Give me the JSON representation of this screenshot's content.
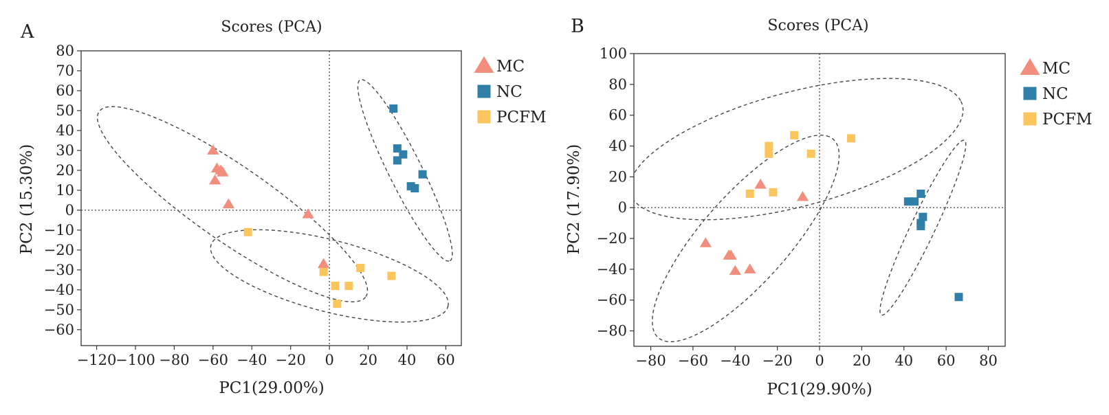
{
  "figure": {
    "colors": {
      "MC": "#f28e7e",
      "NC": "#2f7fa8",
      "PCFM": "#fbc55e"
    },
    "icons": {
      "MC": "triangle-marker-icon",
      "NC": "square-marker-icon",
      "PCFM": "square-marker-icon"
    }
  },
  "chart_data": [
    {
      "panel_label": "A",
      "type": "scatter",
      "title": "Scores (PCA)",
      "xlabel": "PC1(29.00%)",
      "ylabel": "PC2 (15.30%)",
      "xlim": [
        -128,
        68
      ],
      "ylim": [
        -68,
        80
      ],
      "xticks": [
        -120,
        -100,
        -80,
        -60,
        -40,
        -20,
        0,
        20,
        40,
        60
      ],
      "yticks": [
        80,
        70,
        60,
        50,
        40,
        30,
        20,
        10,
        0,
        -10,
        -20,
        -30,
        -40,
        -50,
        -60
      ],
      "xtick_labels": [
        "−120",
        "−100",
        "−80",
        "−60",
        "−40",
        "−20",
        "0",
        "20",
        "40",
        "60"
      ],
      "ytick_labels": [
        "80",
        "70",
        "60",
        "50",
        "40",
        "30",
        "20",
        "10",
        "0",
        "−10",
        "−20",
        "−30",
        "−40",
        "−50",
        "−60"
      ],
      "legend": [
        "MC",
        "NC",
        "PCFM"
      ],
      "legend_position": "outside-right",
      "reference_lines": {
        "x": 0,
        "y": 0,
        "style": "dotted"
      },
      "series": [
        {
          "name": "MC",
          "marker": "triangle",
          "points": [
            [
              -60,
              30
            ],
            [
              -58,
              21
            ],
            [
              -56,
              20
            ],
            [
              -55,
              19
            ],
            [
              -59,
              15
            ],
            [
              -52,
              3
            ],
            [
              -11,
              -2
            ],
            [
              -3,
              -27
            ]
          ]
        },
        {
          "name": "NC",
          "marker": "square",
          "points": [
            [
              33,
              51
            ],
            [
              35,
              31
            ],
            [
              38,
              28
            ],
            [
              35,
              25
            ],
            [
              48,
              18
            ],
            [
              42,
              12
            ],
            [
              44,
              11
            ]
          ]
        },
        {
          "name": "PCFM",
          "marker": "square",
          "points": [
            [
              -42,
              -11
            ],
            [
              -3,
              -31
            ],
            [
              16,
              -29
            ],
            [
              32,
              -33
            ],
            [
              3,
              -38
            ],
            [
              10,
              -38
            ],
            [
              4,
              -47
            ]
          ]
        }
      ],
      "confidence_ellipses": [
        {
          "group": "MC",
          "center": [
            -50,
            3
          ],
          "semi_axes": [
            83,
            19
          ],
          "angle_deg": -34
        },
        {
          "group": "NC",
          "center": [
            39,
            20
          ],
          "semi_axes": [
            51,
            8.5
          ],
          "angle_deg": -63
        },
        {
          "group": "PCFM",
          "center": [
            0,
            -33
          ],
          "semi_axes": [
            63,
            18
          ],
          "angle_deg": -14
        }
      ]
    },
    {
      "panel_label": "B",
      "type": "scatter",
      "title": "Scores (PCA)",
      "xlabel": "PC1(29.90%)",
      "ylabel": "PC2 (17.90%)",
      "xlim": [
        -88,
        88
      ],
      "ylim": [
        -90,
        100
      ],
      "xticks": [
        -80,
        -60,
        -40,
        -20,
        0,
        20,
        40,
        60,
        80
      ],
      "yticks": [
        100,
        80,
        60,
        40,
        20,
        0,
        -20,
        -40,
        -60,
        -80
      ],
      "xtick_labels": [
        "−80",
        "−60",
        "−40",
        "−20",
        "0",
        "20",
        "40",
        "60",
        "80"
      ],
      "ytick_labels": [
        "100",
        "80",
        "60",
        "40",
        "20",
        "0",
        "−20",
        "−40",
        "−60",
        "−80"
      ],
      "legend": [
        "MC",
        "NC",
        "PCFM"
      ],
      "legend_position": "outside-right",
      "reference_lines": {
        "x": 0,
        "y": 0,
        "style": "dotted"
      },
      "series": [
        {
          "name": "MC",
          "marker": "triangle",
          "points": [
            [
              -28,
              15
            ],
            [
              -8,
              7
            ],
            [
              -54,
              -23
            ],
            [
              -43,
              -31
            ],
            [
              -42,
              -31
            ],
            [
              -40,
              -41
            ],
            [
              -33,
              -40
            ]
          ]
        },
        {
          "name": "NC",
          "marker": "square",
          "points": [
            [
              48,
              9
            ],
            [
              42,
              4
            ],
            [
              45,
              4
            ],
            [
              49,
              -6
            ],
            [
              48,
              -10
            ],
            [
              48,
              -12
            ],
            [
              66,
              -58
            ]
          ]
        },
        {
          "name": "PCFM",
          "marker": "square",
          "points": [
            [
              -12,
              47
            ],
            [
              15,
              45
            ],
            [
              -24,
              40
            ],
            [
              -24,
              35
            ],
            [
              -4,
              35
            ],
            [
              -33,
              9
            ],
            [
              -22,
              10
            ]
          ]
        }
      ],
      "confidence_ellipses": [
        {
          "group": "MC",
          "center": [
            -35,
            -20
          ],
          "semi_axes": [
            77,
            23
          ],
          "angle_deg": 59
        },
        {
          "group": "NC",
          "center": [
            49,
            -13
          ],
          "semi_axes": [
            60,
            6
          ],
          "angle_deg": 71
        },
        {
          "group": "PCFM",
          "center": [
            -11,
            38
          ],
          "semi_axes": [
            84,
            36
          ],
          "angle_deg": 22
        }
      ]
    }
  ]
}
